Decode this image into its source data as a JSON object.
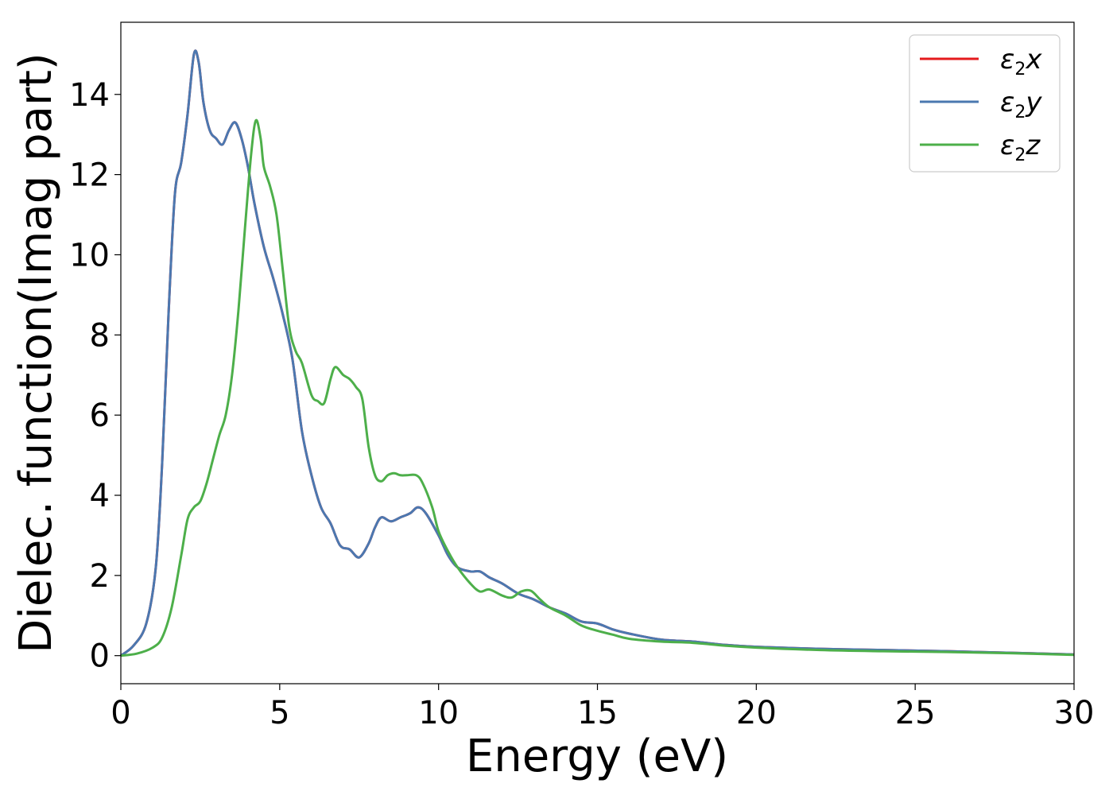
{
  "chart_data": {
    "type": "line",
    "title": "",
    "xlabel": "Energy (eV)",
    "ylabel": "Dielec. function(Imag part)",
    "xlim": [
      0,
      30
    ],
    "ylim": [
      -0.7,
      15.8
    ],
    "xticks": [
      0,
      5,
      10,
      15,
      20,
      25,
      30
    ],
    "yticks": [
      0,
      2,
      4,
      6,
      8,
      10,
      12,
      14
    ],
    "grid": false,
    "legend_position": "top-right",
    "series": [
      {
        "name_symbol": "ε",
        "name_sub": "2",
        "name_suffix": "x",
        "color": "#e41a1c",
        "points": [
          [
            0,
            0
          ],
          [
            0.4,
            0.25
          ],
          [
            0.8,
            0.8
          ],
          [
            1.1,
            2.2
          ],
          [
            1.3,
            4.8
          ],
          [
            1.5,
            8.5
          ],
          [
            1.7,
            11.5
          ],
          [
            1.9,
            12.3
          ],
          [
            2.1,
            13.5
          ],
          [
            2.3,
            15.0
          ],
          [
            2.45,
            14.8
          ],
          [
            2.6,
            13.8
          ],
          [
            2.8,
            13.1
          ],
          [
            3.0,
            12.9
          ],
          [
            3.2,
            12.75
          ],
          [
            3.4,
            13.1
          ],
          [
            3.6,
            13.3
          ],
          [
            3.8,
            12.9
          ],
          [
            4.0,
            12.2
          ],
          [
            4.2,
            11.3
          ],
          [
            4.5,
            10.2
          ],
          [
            4.8,
            9.4
          ],
          [
            5.1,
            8.5
          ],
          [
            5.4,
            7.4
          ],
          [
            5.7,
            5.6
          ],
          [
            6.0,
            4.5
          ],
          [
            6.3,
            3.7
          ],
          [
            6.6,
            3.3
          ],
          [
            6.9,
            2.75
          ],
          [
            7.2,
            2.65
          ],
          [
            7.5,
            2.45
          ],
          [
            7.8,
            2.8
          ],
          [
            8.0,
            3.2
          ],
          [
            8.2,
            3.45
          ],
          [
            8.5,
            3.35
          ],
          [
            8.8,
            3.45
          ],
          [
            9.1,
            3.55
          ],
          [
            9.35,
            3.7
          ],
          [
            9.6,
            3.55
          ],
          [
            10.0,
            3.0
          ],
          [
            10.3,
            2.5
          ],
          [
            10.6,
            2.2
          ],
          [
            11.0,
            2.1
          ],
          [
            11.3,
            2.1
          ],
          [
            11.6,
            1.95
          ],
          [
            12.0,
            1.8
          ],
          [
            12.5,
            1.55
          ],
          [
            13.0,
            1.4
          ],
          [
            13.5,
            1.2
          ],
          [
            14.0,
            1.05
          ],
          [
            14.5,
            0.85
          ],
          [
            15.0,
            0.8
          ],
          [
            15.5,
            0.65
          ],
          [
            16.0,
            0.55
          ],
          [
            17.0,
            0.4
          ],
          [
            18.0,
            0.35
          ],
          [
            19.0,
            0.27
          ],
          [
            20.0,
            0.22
          ],
          [
            22.0,
            0.17
          ],
          [
            24.0,
            0.14
          ],
          [
            26.0,
            0.11
          ],
          [
            28.0,
            0.07
          ],
          [
            30.0,
            0.03
          ]
        ]
      },
      {
        "name_symbol": "ε",
        "name_sub": "2",
        "name_suffix": "y",
        "color": "#4b78b0",
        "points": [
          [
            0,
            0
          ],
          [
            0.4,
            0.25
          ],
          [
            0.8,
            0.8
          ],
          [
            1.1,
            2.2
          ],
          [
            1.3,
            4.8
          ],
          [
            1.5,
            8.5
          ],
          [
            1.7,
            11.5
          ],
          [
            1.9,
            12.3
          ],
          [
            2.1,
            13.5
          ],
          [
            2.3,
            15.0
          ],
          [
            2.45,
            14.8
          ],
          [
            2.6,
            13.8
          ],
          [
            2.8,
            13.1
          ],
          [
            3.0,
            12.9
          ],
          [
            3.2,
            12.75
          ],
          [
            3.4,
            13.1
          ],
          [
            3.6,
            13.3
          ],
          [
            3.8,
            12.9
          ],
          [
            4.0,
            12.2
          ],
          [
            4.2,
            11.3
          ],
          [
            4.5,
            10.2
          ],
          [
            4.8,
            9.4
          ],
          [
            5.1,
            8.5
          ],
          [
            5.4,
            7.4
          ],
          [
            5.7,
            5.6
          ],
          [
            6.0,
            4.5
          ],
          [
            6.3,
            3.7
          ],
          [
            6.6,
            3.3
          ],
          [
            6.9,
            2.75
          ],
          [
            7.2,
            2.65
          ],
          [
            7.5,
            2.45
          ],
          [
            7.8,
            2.8
          ],
          [
            8.0,
            3.2
          ],
          [
            8.2,
            3.45
          ],
          [
            8.5,
            3.35
          ],
          [
            8.8,
            3.45
          ],
          [
            9.1,
            3.55
          ],
          [
            9.35,
            3.7
          ],
          [
            9.6,
            3.55
          ],
          [
            10.0,
            3.0
          ],
          [
            10.3,
            2.5
          ],
          [
            10.6,
            2.2
          ],
          [
            11.0,
            2.1
          ],
          [
            11.3,
            2.1
          ],
          [
            11.6,
            1.95
          ],
          [
            12.0,
            1.8
          ],
          [
            12.5,
            1.55
          ],
          [
            13.0,
            1.4
          ],
          [
            13.5,
            1.2
          ],
          [
            14.0,
            1.05
          ],
          [
            14.5,
            0.85
          ],
          [
            15.0,
            0.8
          ],
          [
            15.5,
            0.65
          ],
          [
            16.0,
            0.55
          ],
          [
            17.0,
            0.4
          ],
          [
            18.0,
            0.35
          ],
          [
            19.0,
            0.27
          ],
          [
            20.0,
            0.22
          ],
          [
            22.0,
            0.17
          ],
          [
            24.0,
            0.14
          ],
          [
            26.0,
            0.11
          ],
          [
            28.0,
            0.07
          ],
          [
            30.0,
            0.03
          ]
        ]
      },
      {
        "name_symbol": "ε",
        "name_sub": "2",
        "name_suffix": "z",
        "color": "#4daf4a",
        "points": [
          [
            0,
            0
          ],
          [
            0.5,
            0.05
          ],
          [
            1.0,
            0.2
          ],
          [
            1.3,
            0.45
          ],
          [
            1.6,
            1.2
          ],
          [
            1.9,
            2.5
          ],
          [
            2.1,
            3.4
          ],
          [
            2.3,
            3.7
          ],
          [
            2.5,
            3.85
          ],
          [
            2.7,
            4.3
          ],
          [
            2.9,
            4.9
          ],
          [
            3.1,
            5.5
          ],
          [
            3.3,
            6.0
          ],
          [
            3.5,
            7.0
          ],
          [
            3.7,
            8.6
          ],
          [
            3.9,
            10.6
          ],
          [
            4.1,
            12.5
          ],
          [
            4.25,
            13.35
          ],
          [
            4.4,
            12.9
          ],
          [
            4.5,
            12.2
          ],
          [
            4.7,
            11.7
          ],
          [
            4.9,
            11.0
          ],
          [
            5.1,
            9.6
          ],
          [
            5.3,
            8.2
          ],
          [
            5.5,
            7.6
          ],
          [
            5.7,
            7.3
          ],
          [
            6.0,
            6.5
          ],
          [
            6.2,
            6.35
          ],
          [
            6.4,
            6.3
          ],
          [
            6.6,
            6.9
          ],
          [
            6.75,
            7.2
          ],
          [
            7.0,
            7.0
          ],
          [
            7.2,
            6.9
          ],
          [
            7.4,
            6.7
          ],
          [
            7.6,
            6.4
          ],
          [
            7.8,
            5.2
          ],
          [
            8.0,
            4.5
          ],
          [
            8.2,
            4.35
          ],
          [
            8.4,
            4.5
          ],
          [
            8.6,
            4.55
          ],
          [
            8.8,
            4.5
          ],
          [
            9.0,
            4.5
          ],
          [
            9.3,
            4.5
          ],
          [
            9.5,
            4.3
          ],
          [
            9.8,
            3.7
          ],
          [
            10.0,
            3.1
          ],
          [
            10.3,
            2.6
          ],
          [
            10.6,
            2.2
          ],
          [
            11.0,
            1.8
          ],
          [
            11.3,
            1.6
          ],
          [
            11.6,
            1.65
          ],
          [
            12.0,
            1.5
          ],
          [
            12.3,
            1.45
          ],
          [
            12.6,
            1.6
          ],
          [
            12.9,
            1.62
          ],
          [
            13.2,
            1.4
          ],
          [
            13.5,
            1.2
          ],
          [
            14.0,
            1.0
          ],
          [
            14.5,
            0.75
          ],
          [
            15.0,
            0.62
          ],
          [
            15.5,
            0.52
          ],
          [
            16.0,
            0.42
          ],
          [
            17.0,
            0.35
          ],
          [
            18.0,
            0.32
          ],
          [
            19.0,
            0.25
          ],
          [
            20.0,
            0.2
          ],
          [
            22.0,
            0.14
          ],
          [
            24.0,
            0.11
          ],
          [
            26.0,
            0.09
          ],
          [
            28.0,
            0.06
          ],
          [
            30.0,
            0.02
          ]
        ]
      }
    ]
  }
}
